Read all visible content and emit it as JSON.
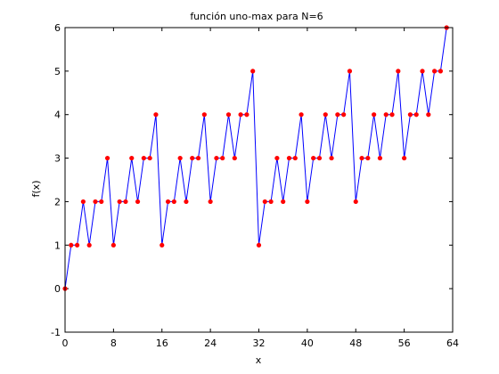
{
  "chart_data": {
    "type": "line",
    "title": "función uno-max para N=6",
    "xlabel": "x",
    "ylabel": "f(x)",
    "xlim": [
      0,
      64
    ],
    "ylim": [
      -1,
      6
    ],
    "xticks": [
      "0",
      "8",
      "16",
      "24",
      "32",
      "40",
      "48",
      "56",
      "64"
    ],
    "yticks": [
      "-1",
      "0",
      "1",
      "2",
      "3",
      "4",
      "5",
      "6"
    ],
    "grid": false,
    "line_color": "#0000ff",
    "marker_color": "#ff0000",
    "x": [
      0,
      1,
      2,
      3,
      4,
      5,
      6,
      7,
      8,
      9,
      10,
      11,
      12,
      13,
      14,
      15,
      16,
      17,
      18,
      19,
      20,
      21,
      22,
      23,
      24,
      25,
      26,
      27,
      28,
      29,
      30,
      31,
      32,
      33,
      34,
      35,
      36,
      37,
      38,
      39,
      40,
      41,
      42,
      43,
      44,
      45,
      46,
      47,
      48,
      49,
      50,
      51,
      52,
      53,
      54,
      55,
      56,
      57,
      58,
      59,
      60,
      61,
      62,
      63
    ],
    "y": [
      0,
      1,
      1,
      2,
      1,
      2,
      2,
      3,
      1,
      2,
      2,
      3,
      2,
      3,
      3,
      4,
      1,
      2,
      2,
      3,
      2,
      3,
      3,
      4,
      2,
      3,
      3,
      4,
      3,
      4,
      4,
      5,
      1,
      2,
      2,
      3,
      2,
      3,
      3,
      4,
      2,
      3,
      3,
      4,
      3,
      4,
      4,
      5,
      2,
      3,
      3,
      4,
      3,
      4,
      4,
      5,
      3,
      4,
      4,
      5,
      4,
      5,
      5,
      6
    ]
  }
}
